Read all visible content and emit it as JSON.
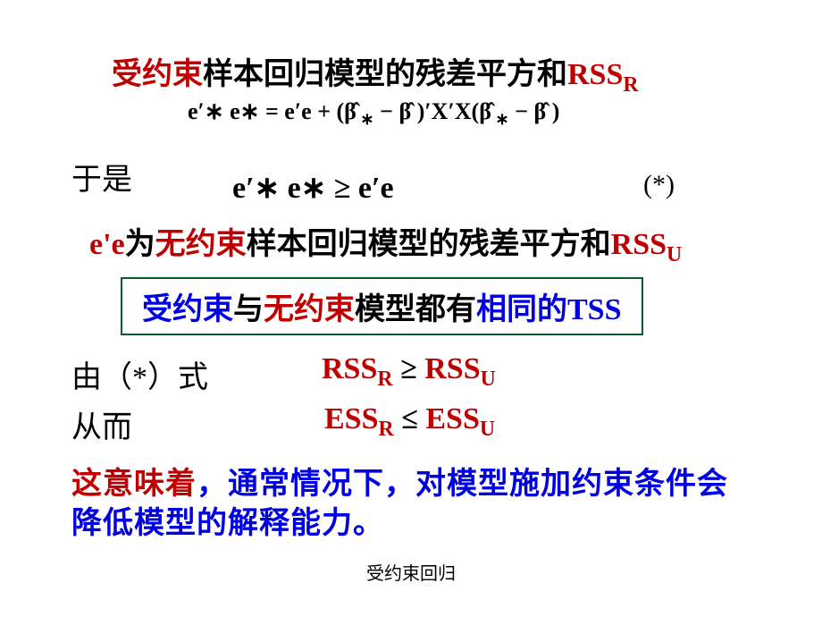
{
  "colors": {
    "black": "#000000",
    "red": "#c00000",
    "blue": "#0000e0",
    "box_border": "#0b5b2b",
    "bg": "#ffffff"
  },
  "fontsize": {
    "body": 34,
    "eq_small": 26,
    "eq_big": 34,
    "star": 30,
    "footer": 20
  },
  "line1": {
    "p1": "受约束",
    "p2": "样本回归模型的",
    "p3": "残差平方和",
    "p4": "RSS",
    "p4sub": "R"
  },
  "eq1": {
    "lhs": "e′∗ e∗",
    "eq": " = ",
    "t1": "e′e + (",
    "bhat1": "β̂",
    "s1": " ∗",
    "minus1": " − ",
    "bhat2": "β̂",
    "t2": " )′X′X(",
    "bhat3": "β̂",
    "s2": " ∗",
    "minus2": " − ",
    "bhat4": "β̂",
    "t3": " )"
  },
  "line2": "于是",
  "eq2": {
    "lhs": "e′∗ e∗",
    "rel": " ≥ ",
    "rhs": "e′e"
  },
  "eq2_star": "(*)",
  "line3": {
    "p1": "e'e",
    "p2": "为",
    "p3": "无约束",
    "p4": "样本回归模型的",
    "p5": "残差平方",
    "p6": "和",
    "p7": "RSS",
    "p7sub": "U"
  },
  "box": {
    "p1": "受约束",
    "p2": "与",
    "p3": "无约束",
    "p4": "模型都有",
    "p5": "相同的",
    "p6": "TSS"
  },
  "line4": "由（*）式",
  "eq3": {
    "a": "RSS",
    "asub": "R",
    "rel": " ≥ ",
    "b": "RSS",
    "bsub": "U"
  },
  "line5": "从而",
  "eq4": {
    "a": "ESS",
    "asub": "R",
    "rel": " ≤ ",
    "b": "ESS",
    "bsub": "U"
  },
  "line6": {
    "p1": "这意味着",
    "p2": "，通常情况下，对模型施加约束条件会降低模型的解释能力",
    "p3": "。"
  },
  "footer": "受约束回归"
}
